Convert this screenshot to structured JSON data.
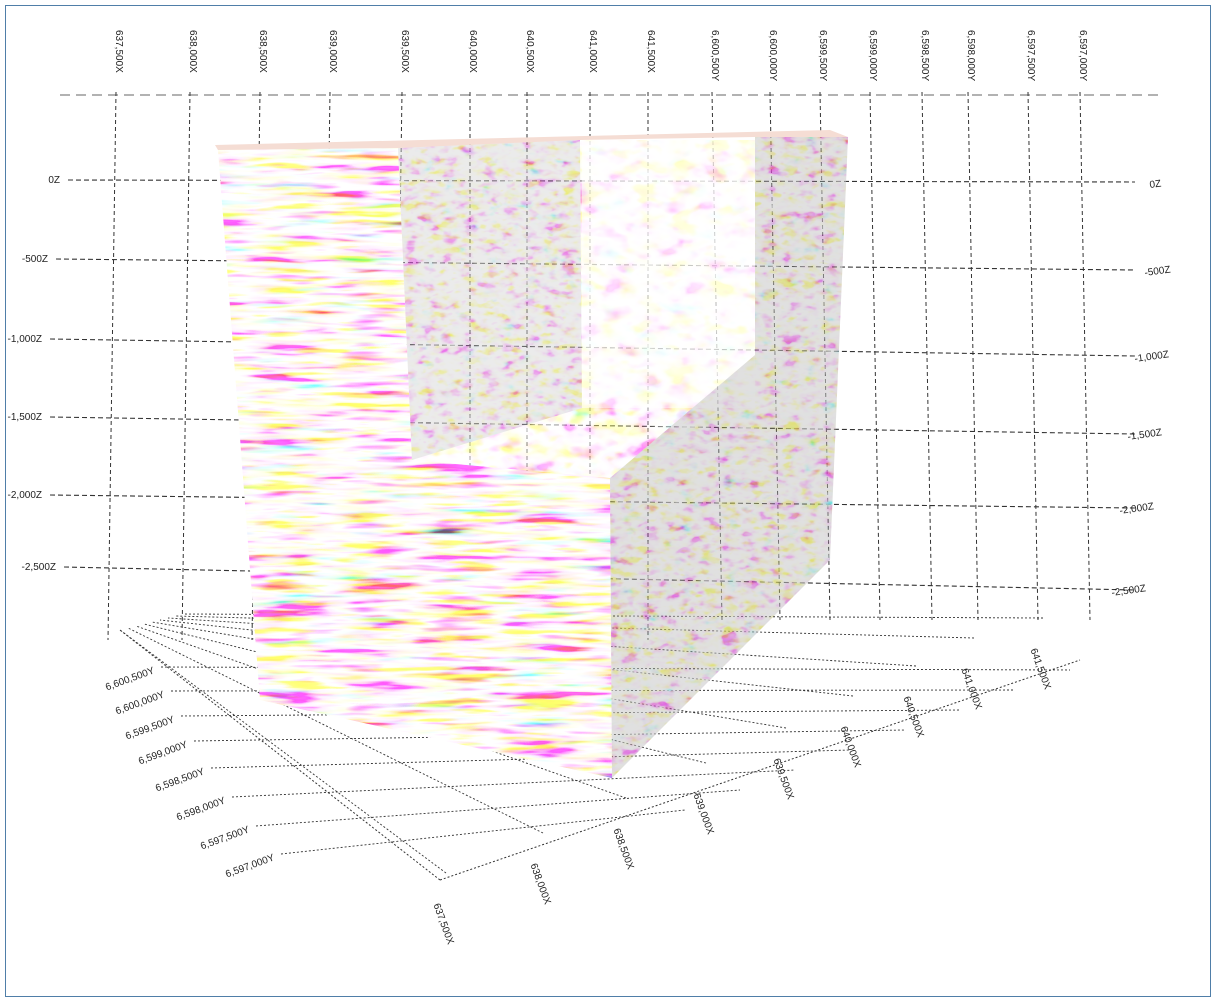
{
  "axes": {
    "top_x": [
      "637,500X",
      "638,000X",
      "638,500X",
      "639,000X",
      "639,500X",
      "640,000X",
      "640,500X",
      "641,000X",
      "641,500X"
    ],
    "top_y": [
      "6,600,500Y",
      "6,600,000Y",
      "6,599,500Y",
      "6,599,000Y",
      "6,598,500Y",
      "6,598,000Y",
      "6,597,500Y",
      "6,597,000Y"
    ],
    "z_left": [
      "0Z",
      "-500Z",
      "-1,000Z",
      "-1,500Z",
      "-2,000Z",
      "-2,500Z"
    ],
    "z_right": [
      "0Z",
      "-500Z",
      "-1,000Z",
      "-1,500Z",
      "-2,000Z",
      "-2,500Z"
    ],
    "bottom_y": [
      "6,600,500Y",
      "6,600,000Y",
      "6,599,500Y",
      "6,599,000Y",
      "6,598,500Y",
      "6,598,000Y",
      "6,597,500Y",
      "6,597,000Y"
    ],
    "bottom_x": [
      "637,500X",
      "638,000X",
      "638,500X",
      "639,000X",
      "639,500X",
      "640,000X",
      "640,500X",
      "641,000X",
      "641,500X"
    ]
  },
  "colors": {
    "frame": "#4f7ea8",
    "seismic_red": "#b0142a",
    "seismic_dark": "#2a2a2a",
    "seismic_orange": "#e0833a",
    "background": "#ffffff"
  }
}
